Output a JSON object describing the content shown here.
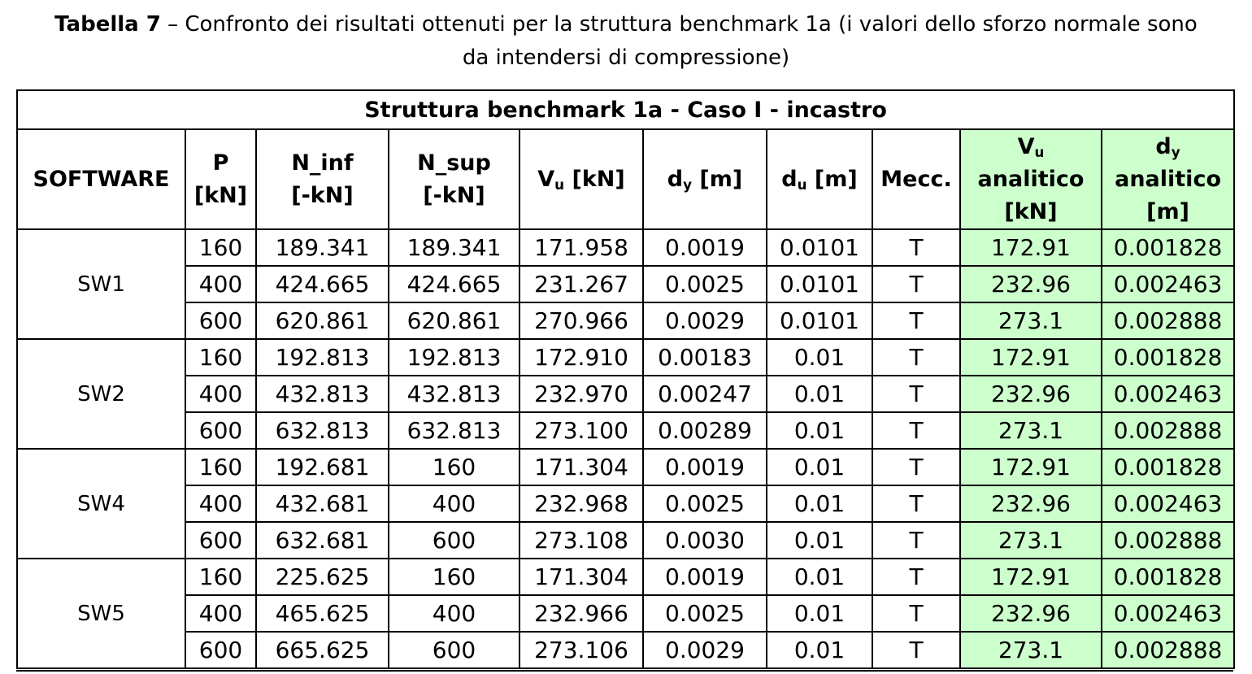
{
  "caption": {
    "label": "Tabella 7",
    "line1": "– Confronto dei risultati ottenuti per la struttura benchmark 1a (i valori dello sforzo normale sono",
    "line2": "da intendersi di compressione)"
  },
  "table": {
    "title": "Struttura benchmark 1a - Caso I - incastro",
    "headers": {
      "software": "SOFTWARE",
      "p_l1": "P",
      "p_l2": "[kN]",
      "ninf_l1": "N_inf",
      "ninf_l2": "[-kN]",
      "nsup_l1": "N_sup",
      "nsup_l2": "[-kN]",
      "vu_main": "V",
      "vu_sub": "u",
      "vu_unit": " [kN]",
      "dy_main": "d",
      "dy_sub": "y",
      "dy_unit": " [m]",
      "du_main": "d",
      "du_sub": "u",
      "du_unit": " [m]",
      "mecc": "Mecc.",
      "vua_main": "V",
      "vua_sub": "u",
      "vua_l2": "analitico",
      "vua_l3": "[kN]",
      "dya_main": "d",
      "dya_sub": "y",
      "dya_l2": "analitico",
      "dya_l3": "[m]"
    },
    "groups": [
      {
        "software": "SW1",
        "rows": [
          {
            "p": "160",
            "n_inf": "189.341",
            "n_sup": "189.341",
            "vu": "171.958",
            "dy": "0.0019",
            "du": "0.0101",
            "mecc": "T",
            "vu_an": "172.91",
            "dy_an": "0.001828"
          },
          {
            "p": "400",
            "n_inf": "424.665",
            "n_sup": "424.665",
            "vu": "231.267",
            "dy": "0.0025",
            "du": "0.0101",
            "mecc": "T",
            "vu_an": "232.96",
            "dy_an": "0.002463"
          },
          {
            "p": "600",
            "n_inf": "620.861",
            "n_sup": "620.861",
            "vu": "270.966",
            "dy": "0.0029",
            "du": "0.0101",
            "mecc": "T",
            "vu_an": "273.1",
            "dy_an": "0.002888"
          }
        ]
      },
      {
        "software": "SW2",
        "rows": [
          {
            "p": "160",
            "n_inf": "192.813",
            "n_sup": "192.813",
            "vu": "172.910",
            "dy": "0.00183",
            "du": "0.01",
            "mecc": "T",
            "vu_an": "172.91",
            "dy_an": "0.001828"
          },
          {
            "p": "400",
            "n_inf": "432.813",
            "n_sup": "432.813",
            "vu": "232.970",
            "dy": "0.00247",
            "du": "0.01",
            "mecc": "T",
            "vu_an": "232.96",
            "dy_an": "0.002463"
          },
          {
            "p": "600",
            "n_inf": "632.813",
            "n_sup": "632.813",
            "vu": "273.100",
            "dy": "0.00289",
            "du": "0.01",
            "mecc": "T",
            "vu_an": "273.1",
            "dy_an": "0.002888"
          }
        ]
      },
      {
        "software": "SW4",
        "rows": [
          {
            "p": "160",
            "n_inf": "192.681",
            "n_sup": "160",
            "vu": "171.304",
            "dy": "0.0019",
            "du": "0.01",
            "mecc": "T",
            "vu_an": "172.91",
            "dy_an": "0.001828"
          },
          {
            "p": "400",
            "n_inf": "432.681",
            "n_sup": "400",
            "vu": "232.968",
            "dy": "0.0025",
            "du": "0.01",
            "mecc": "T",
            "vu_an": "232.96",
            "dy_an": "0.002463"
          },
          {
            "p": "600",
            "n_inf": "632.681",
            "n_sup": "600",
            "vu": "273.108",
            "dy": "0.0030",
            "du": "0.01",
            "mecc": "T",
            "vu_an": "273.1",
            "dy_an": "0.002888"
          }
        ]
      },
      {
        "software": "SW5",
        "rows": [
          {
            "p": "160",
            "n_inf": "225.625",
            "n_sup": "160",
            "vu": "171.304",
            "dy": "0.0019",
            "du": "0.01",
            "mecc": "T",
            "vu_an": "172.91",
            "dy_an": "0.001828"
          },
          {
            "p": "400",
            "n_inf": "465.625",
            "n_sup": "400",
            "vu": "232.966",
            "dy": "0.0025",
            "du": "0.01",
            "mecc": "T",
            "vu_an": "232.96",
            "dy_an": "0.002463"
          },
          {
            "p": "600",
            "n_inf": "665.625",
            "n_sup": "600",
            "vu": "273.106",
            "dy": "0.0029",
            "du": "0.01",
            "mecc": "T",
            "vu_an": "273.1",
            "dy_an": "0.002888"
          }
        ]
      }
    ],
    "colors": {
      "analytic_bg": "#ccffcc",
      "border": "#000000"
    }
  }
}
